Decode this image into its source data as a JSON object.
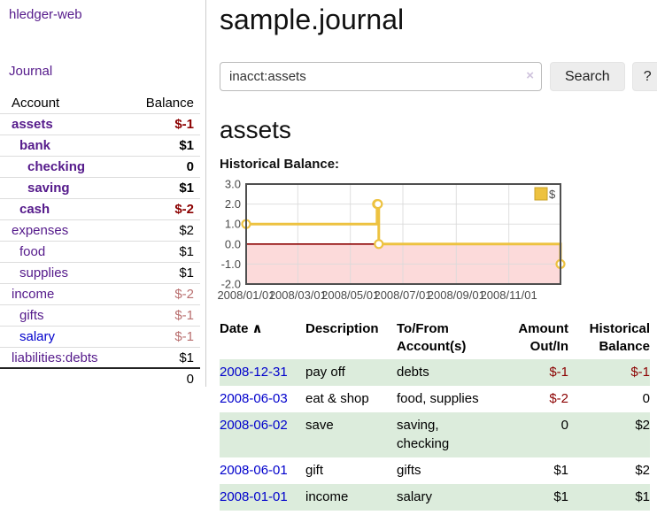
{
  "app": {
    "title": "hledger-web",
    "nav": [
      {
        "label": "Journal"
      }
    ]
  },
  "sidebar": {
    "headers": {
      "account": "Account",
      "balance": "Balance"
    },
    "accounts": [
      {
        "name": "assets",
        "depth": 0,
        "balance": "$-1",
        "emphasis": true,
        "balance_style": "negative-strong"
      },
      {
        "name": "bank",
        "depth": 1,
        "balance": "$1",
        "emphasis": true,
        "balance_style": "normal"
      },
      {
        "name": "checking",
        "depth": 2,
        "balance": "0",
        "emphasis": true,
        "balance_style": "normal"
      },
      {
        "name": "saving",
        "depth": 2,
        "balance": "$1",
        "emphasis": true,
        "balance_style": "normal"
      },
      {
        "name": "cash",
        "depth": 1,
        "balance": "$-2",
        "emphasis": true,
        "balance_style": "negative-strong"
      },
      {
        "name": "expenses",
        "depth": 0,
        "balance": "$2",
        "emphasis": false,
        "balance_style": "normal"
      },
      {
        "name": "food",
        "depth": 1,
        "balance": "$1",
        "emphasis": false,
        "balance_style": "normal"
      },
      {
        "name": "supplies",
        "depth": 1,
        "balance": "$1",
        "emphasis": false,
        "balance_style": "normal"
      },
      {
        "name": "income",
        "depth": 0,
        "balance": "$-2",
        "emphasis": false,
        "balance_style": "negative-muted"
      },
      {
        "name": "gifts",
        "depth": 1,
        "balance": "$-1",
        "emphasis": false,
        "balance_style": "negative-muted"
      },
      {
        "name": "salary",
        "depth": 1,
        "balance": "$-1",
        "emphasis": false,
        "balance_style": "negative-muted",
        "link_style": "unvisited"
      },
      {
        "name": "liabilities:debts",
        "depth": 0,
        "balance": "$1",
        "emphasis": false,
        "balance_style": "normal"
      }
    ],
    "total": "0"
  },
  "main": {
    "title": "sample.journal",
    "search": {
      "value": "inacct:assets",
      "clear": "×",
      "submit": "Search",
      "help": "?"
    },
    "account_heading": "assets",
    "chart_title": "Historical Balance:"
  },
  "chart_data": {
    "type": "line",
    "step": true,
    "title": "Historical Balance",
    "x": [
      "2008-01-01",
      "2008-06-01",
      "2008-06-02",
      "2008-06-03",
      "2008-12-31"
    ],
    "series": [
      {
        "name": "$",
        "values": [
          1,
          2,
          2,
          0,
          -1
        ]
      }
    ],
    "xlim": [
      "2008-01-01",
      "2008-12-31"
    ],
    "ylim": [
      -2,
      3
    ],
    "y_ticks": [
      3,
      2,
      1,
      0,
      -1,
      -2
    ],
    "x_tick_labels": [
      "2008/01/01",
      "2008/03/01",
      "2008/05/01",
      "2008/07/01",
      "2008/09/01",
      "2008/11/01"
    ],
    "x_tick_dates": [
      "2008-01-01",
      "2008-03-01",
      "2008-05-01",
      "2008-07-01",
      "2008-09-01",
      "2008-11-01"
    ],
    "grid": true,
    "legend": {
      "label": "$",
      "position": "top-right"
    },
    "colors": {
      "series": "#edc240",
      "marker_fill": "#ffffff",
      "zero_line": "#8b0000",
      "negative_fill": "#fcdada",
      "grid": "#d9d9d9",
      "border": "#4f4f4f",
      "tick_text": "#4a4a4a",
      "legend_box_border": "#c9a227"
    }
  },
  "register": {
    "headers": [
      {
        "label": "Date",
        "sort_icon": "∧"
      },
      {
        "label": "Description"
      },
      {
        "label": "To/From Account(s)"
      },
      {
        "label": "Amount Out/In"
      },
      {
        "label": "Historical Balance"
      }
    ],
    "rows": [
      {
        "date": "2008-12-31",
        "description": "pay off",
        "accounts": "debts",
        "amount": "$-1",
        "amount_neg": true,
        "balance": "$-1",
        "balance_neg": true,
        "shaded": true
      },
      {
        "date": "2008-06-03",
        "description": "eat & shop",
        "accounts": "food, supplies",
        "amount": "$-2",
        "amount_neg": true,
        "balance": "0",
        "balance_neg": false,
        "shaded": false
      },
      {
        "date": "2008-06-02",
        "description": "save",
        "accounts": "saving, checking",
        "amount": "0",
        "amount_neg": false,
        "balance": "$2",
        "balance_neg": false,
        "shaded": true
      },
      {
        "date": "2008-06-01",
        "description": "gift",
        "accounts": "gifts",
        "amount": "$1",
        "amount_neg": false,
        "balance": "$2",
        "balance_neg": false,
        "shaded": false
      },
      {
        "date": "2008-01-01",
        "description": "income",
        "accounts": "salary",
        "amount": "$1",
        "amount_neg": false,
        "balance": "$1",
        "balance_neg": false,
        "shaded": true
      }
    ]
  },
  "colors": {
    "link_visited": "#551a8b",
    "link_unvisited": "#0000cc",
    "negative_strong": "#8b0000",
    "negative_muted": "#b96f6f",
    "row_shade": "#dcecdc"
  }
}
